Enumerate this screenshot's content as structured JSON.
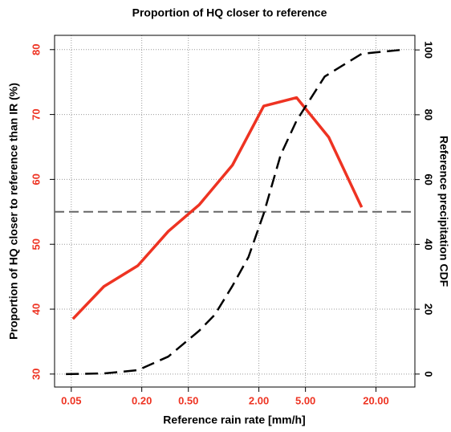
{
  "chart_data": {
    "type": "line",
    "title": "Proportion of HQ closer to reference",
    "x_label": "Reference rain rate [mm/h]",
    "y_label": "Proportion of HQ closer to reference than IR (%)",
    "y2_label": "Reference precipitation CDF",
    "log_x": true,
    "grid": true,
    "xlim": [
      0.036,
      43
    ],
    "xticks": [
      {
        "value": 0.05,
        "label": "0.05"
      },
      {
        "value": 0.2,
        "label": "0.20"
      },
      {
        "value": 0.5,
        "label": "0.50"
      },
      {
        "value": 2,
        "label": "2.00"
      },
      {
        "value": 5,
        "label": "5.00"
      },
      {
        "value": 20,
        "label": "20.00"
      }
    ],
    "ylim": [
      28,
      82.2
    ],
    "yticks": [
      30,
      40,
      50,
      60,
      70,
      80
    ],
    "y2lim": [
      -4,
      104.5
    ],
    "y2ticks": [
      0,
      20,
      40,
      60,
      80,
      100
    ],
    "hline": 55,
    "hline_color": "#666666",
    "series": [
      {
        "color": "#ee3322",
        "axis": "y",
        "dash": false,
        "x": [
          0.0516,
          0.095,
          0.185,
          0.337,
          0.62,
          1.19,
          2.2,
          4.2,
          7.9,
          15.1
        ],
        "values": [
          38.5,
          43.5,
          46.7,
          52.0,
          56.1,
          62.2,
          71.3,
          72.6,
          66.5,
          55.7
        ]
      },
      {
        "color": "#000000",
        "axis": "y2",
        "dash": true,
        "x": [
          0.045,
          0.095,
          0.185,
          0.337,
          0.62,
          0.84,
          1.19,
          1.63,
          2.2,
          3.07,
          4.2,
          7.3,
          15.1,
          32.7
        ],
        "values": [
          0,
          0.2,
          1.2,
          5.4,
          13.4,
          18.3,
          27.2,
          36.1,
          49.5,
          67.6,
          78.2,
          91.8,
          98.8,
          100
        ]
      }
    ]
  }
}
